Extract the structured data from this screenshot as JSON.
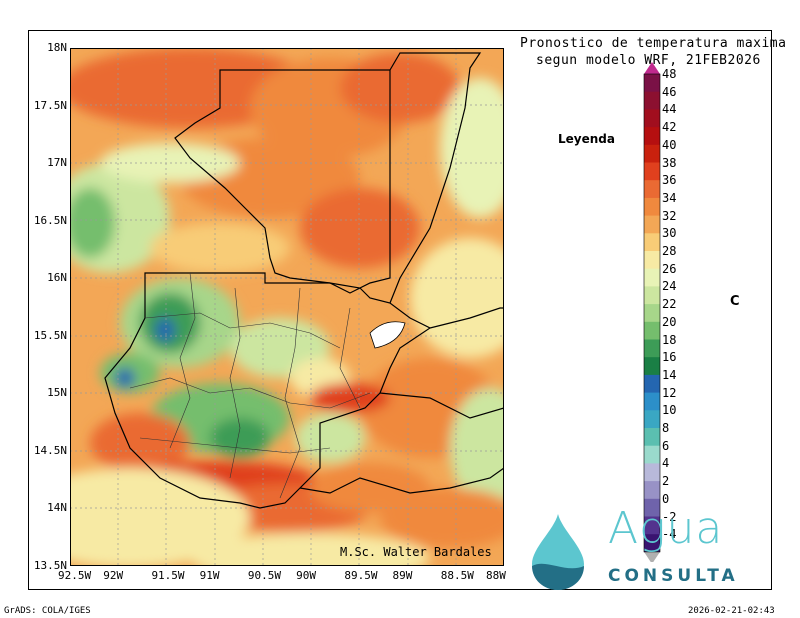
{
  "title": {
    "line1": "Pronostico de temperatura maxima",
    "line2": "segun modelo WRF, 21FEB2026"
  },
  "legend": {
    "title": "Leyenda",
    "unit": "C",
    "levels": [
      48,
      46,
      44,
      42,
      40,
      38,
      36,
      34,
      32,
      30,
      28,
      26,
      24,
      22,
      20,
      18,
      16,
      14,
      12,
      10,
      8,
      6,
      4,
      2,
      0,
      -2,
      -4
    ],
    "colors": [
      "#7a1146",
      "#8c1030",
      "#a10e1e",
      "#b50f10",
      "#c9210e",
      "#e0401e",
      "#ea6a33",
      "#f0893e",
      "#f3a756",
      "#f8cc77",
      "#f7eaa4",
      "#e8f3b6",
      "#cce6a0",
      "#a7d68a",
      "#75be6d",
      "#3d9c57",
      "#1a7f45",
      "#2466b0",
      "#2c8fc9",
      "#3aa7c3",
      "#5bbfb0",
      "#9adacc",
      "#b8b9da",
      "#9892c6",
      "#6f63ab",
      "#53338e",
      "#3a1470"
    ],
    "labels": [
      "48",
      "46",
      "44",
      "42",
      "40",
      "38",
      "36",
      "34",
      "32",
      "30",
      "28",
      "26",
      "24",
      "22",
      "20",
      "18",
      "16",
      "14",
      "12",
      "10",
      "8",
      "6",
      "4",
      "2",
      "0",
      "-2",
      "-4"
    ]
  },
  "axes": {
    "lat_labels": [
      "18N",
      "17.5N",
      "17N",
      "16.5N",
      "16N",
      "15.5N",
      "15N",
      "14.5N",
      "14N",
      "13.5N"
    ],
    "lat_values": [
      18,
      17.5,
      17,
      16.5,
      16,
      15.5,
      15,
      14.5,
      14,
      13.5
    ],
    "lon_labels": [
      "92.5W",
      "92W",
      "91.5W",
      "91W",
      "90.5W",
      "90W",
      "89.5W",
      "89W",
      "88.5W",
      "88W"
    ],
    "lon_values": [
      -92.5,
      -92,
      -91.5,
      -91,
      -90.5,
      -90,
      -89.5,
      -89,
      -88.5,
      -88
    ]
  },
  "author": "M.Sc. Walter Bardales",
  "logo": {
    "word1": "Agua",
    "word2": "CONSULTA",
    "brand_dark": "#236f86",
    "brand_light": "#5cc6cf"
  },
  "footer": {
    "left": "GrADS: COLA/IGES",
    "right": "2026-02-21-02:43"
  }
}
